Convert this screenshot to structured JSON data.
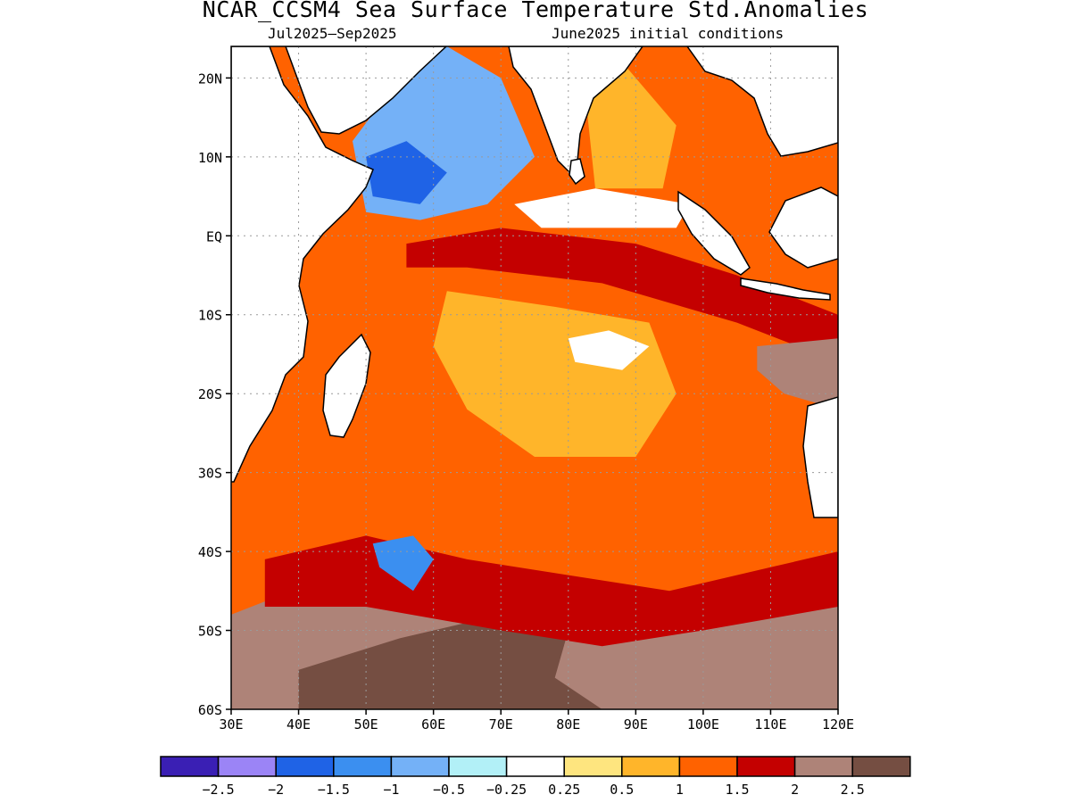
{
  "title": "NCAR_CCSM4 Sea Surface Temperature Std.Anomalies",
  "period": "Jul2025–Sep2025",
  "init": "June2025 initial conditions",
  "map": {
    "lon_range": [
      30,
      120
    ],
    "lat_range": [
      -60,
      24
    ],
    "lat_ticks": [
      {
        "v": 20,
        "t": "20N"
      },
      {
        "v": 10,
        "t": "10N"
      },
      {
        "v": 0,
        "t": "EQ"
      },
      {
        "v": -10,
        "t": "10S"
      },
      {
        "v": -20,
        "t": "20S"
      },
      {
        "v": -30,
        "t": "30S"
      },
      {
        "v": -40,
        "t": "40S"
      },
      {
        "v": -50,
        "t": "50S"
      },
      {
        "v": -60,
        "t": "60S"
      }
    ],
    "lon_ticks": [
      {
        "v": 30,
        "t": "30E"
      },
      {
        "v": 40,
        "t": "40E"
      },
      {
        "v": 50,
        "t": "50E"
      },
      {
        "v": 60,
        "t": "60E"
      },
      {
        "v": 70,
        "t": "70E"
      },
      {
        "v": 80,
        "t": "80E"
      },
      {
        "v": 90,
        "t": "90E"
      },
      {
        "v": 100,
        "t": "100E"
      },
      {
        "v": 110,
        "t": "110E"
      },
      {
        "v": 120,
        "t": "120E"
      }
    ],
    "background_level": "1 to 1.5",
    "regions": [
      {
        "name": "southern-ocean-band",
        "color": "#ae8378",
        "pts": [
          [
            30,
            -48
          ],
          [
            45,
            -43
          ],
          [
            60,
            -45
          ],
          [
            75,
            -46
          ],
          [
            90,
            -47
          ],
          [
            105,
            -45
          ],
          [
            120,
            -43
          ],
          [
            120,
            -60
          ],
          [
            30,
            -60
          ]
        ]
      },
      {
        "name": "southern-ocean-core",
        "color": "#754e42",
        "pts": [
          [
            40,
            -55
          ],
          [
            55,
            -51
          ],
          [
            70,
            -48
          ],
          [
            80,
            -50
          ],
          [
            78,
            -56
          ],
          [
            85,
            -60
          ],
          [
            40,
            -60
          ]
        ]
      },
      {
        "name": "south-indian-red-band",
        "color": "#c40000",
        "pts": [
          [
            35,
            -41
          ],
          [
            50,
            -38
          ],
          [
            65,
            -41
          ],
          [
            80,
            -43
          ],
          [
            95,
            -45
          ],
          [
            110,
            -42
          ],
          [
            120,
            -40
          ],
          [
            120,
            -47
          ],
          [
            100,
            -50
          ],
          [
            85,
            -52
          ],
          [
            70,
            -50
          ],
          [
            50,
            -47
          ],
          [
            35,
            -47
          ]
        ]
      },
      {
        "name": "equatorial-red-band",
        "color": "#c40000",
        "pts": [
          [
            56,
            -1
          ],
          [
            70,
            1
          ],
          [
            90,
            -1
          ],
          [
            105,
            -5
          ],
          [
            120,
            -10
          ],
          [
            120,
            -16
          ],
          [
            105,
            -11
          ],
          [
            85,
            -6
          ],
          [
            65,
            -4
          ],
          [
            56,
            -4
          ]
        ]
      },
      {
        "name": "australia-west-brown",
        "color": "#ae8378",
        "pts": [
          [
            108,
            -14
          ],
          [
            120,
            -13
          ],
          [
            120,
            -22
          ],
          [
            112,
            -20
          ],
          [
            108,
            -17
          ]
        ]
      },
      {
        "name": "arabian-sea-cool",
        "color": "#74b1f7",
        "pts": [
          [
            48,
            12
          ],
          [
            55,
            20
          ],
          [
            62,
            24
          ],
          [
            70,
            20
          ],
          [
            75,
            10
          ],
          [
            68,
            4
          ],
          [
            58,
            2
          ],
          [
            50,
            3
          ]
        ]
      },
      {
        "name": "somali-cold-core",
        "color": "#1f63e6",
        "pts": [
          [
            50,
            10
          ],
          [
            56,
            12
          ],
          [
            62,
            8
          ],
          [
            58,
            4
          ],
          [
            51,
            5
          ]
        ]
      },
      {
        "name": "bay-of-bengal-warm",
        "color": "#ffb52a",
        "pts": [
          [
            82,
            22
          ],
          [
            88,
            22
          ],
          [
            96,
            14
          ],
          [
            94,
            6
          ],
          [
            84,
            6
          ]
        ]
      },
      {
        "name": "bay-of-bengal-neutral",
        "color": "#ffffff",
        "pts": [
          [
            72,
            4
          ],
          [
            84,
            6
          ],
          [
            98,
            4
          ],
          [
            96,
            1
          ],
          [
            76,
            1
          ]
        ]
      },
      {
        "name": "central-indian-warm",
        "color": "#ffb52a",
        "pts": [
          [
            62,
            -7
          ],
          [
            78,
            -9
          ],
          [
            92,
            -11
          ],
          [
            96,
            -20
          ],
          [
            90,
            -28
          ],
          [
            75,
            -28
          ],
          [
            65,
            -22
          ],
          [
            60,
            -14
          ]
        ]
      },
      {
        "name": "central-indian-neutral",
        "color": "#ffffff",
        "pts": [
          [
            80,
            -13
          ],
          [
            86,
            -12
          ],
          [
            92,
            -14
          ],
          [
            88,
            -17
          ],
          [
            81,
            -16
          ]
        ]
      },
      {
        "name": "south-central-cool",
        "color": "#3b8ff0",
        "pts": [
          [
            51,
            -39
          ],
          [
            57,
            -38
          ],
          [
            60,
            -41
          ],
          [
            57,
            -45
          ],
          [
            52,
            -42
          ]
        ]
      }
    ]
  },
  "colorbar": {
    "colors": [
      "#3a1fb4",
      "#9b84f6",
      "#1f63e6",
      "#3b8ff0",
      "#74b1f7",
      "#b2f0f7",
      "#ffffff",
      "#fee57f",
      "#ffb52a",
      "#ff6200",
      "#c40000",
      "#ae8378",
      "#754e42"
    ],
    "labels": [
      "−2.5",
      "−2",
      "−1.5",
      "−1",
      "−0.5",
      "−0.25",
      "0.25",
      "0.5",
      "1",
      "1.5",
      "2",
      "2.5"
    ]
  }
}
